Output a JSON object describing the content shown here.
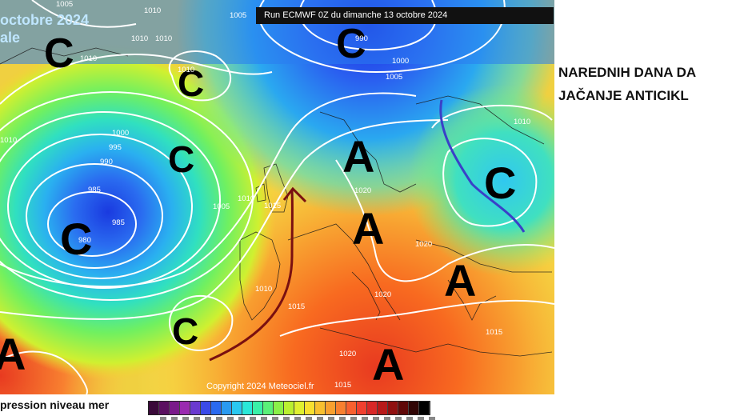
{
  "map": {
    "run_banner": "Run ECMWF 0Z du dimanche 13 octobre 2024",
    "corner_title_line1": "octobre 2024",
    "corner_title_line2": "ale",
    "copyright": "Copyright 2024 Meteociel.fr",
    "low_symbol": "C",
    "high_symbol": "A",
    "isobar_labels": [
      "1005",
      "1010",
      "1010",
      "1010",
      "1010",
      "1005",
      "990",
      "1000",
      "1005",
      "1010",
      "1010",
      "1000",
      "995",
      "990",
      "985",
      "985",
      "980",
      "1005",
      "1010",
      "1015",
      "1020",
      "1020",
      "1010",
      "1015",
      "1020",
      "1015",
      "1020",
      "1015",
      "1010"
    ]
  },
  "side_text": {
    "line1": "NAREDNIH DANA DA",
    "line2": "JAČANJE ANTICIKL"
  },
  "legend": {
    "label": "pression niveau mer",
    "colors": [
      "#3a0a3a",
      "#5a1060",
      "#7a1a8a",
      "#9a2ab0",
      "#6a3ad0",
      "#3a4ae8",
      "#2a6af0",
      "#2a9af0",
      "#2ac8f0",
      "#2ae8d8",
      "#3af0a8",
      "#5af078",
      "#8af048",
      "#baf030",
      "#e0f030",
      "#f8e030",
      "#f8c030",
      "#f8a030",
      "#f88030",
      "#f86030",
      "#f04030",
      "#d82828",
      "#b81a1a",
      "#901010",
      "#600808",
      "#300404",
      "#000000"
    ]
  },
  "colors": {
    "isobar": "#ffffff",
    "arrow_ridge": "#7a1010",
    "trough_line": "#3a40c8"
  }
}
